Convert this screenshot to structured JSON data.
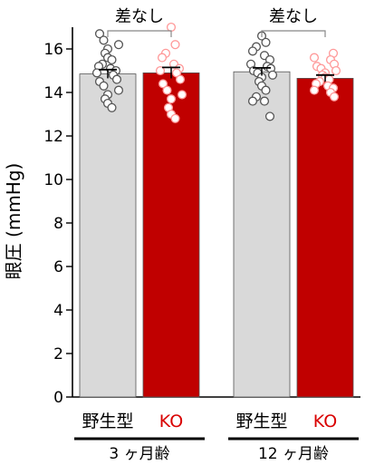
{
  "chart_data": {
    "type": "bar",
    "ylabel": "眼圧 (mmHg)",
    "ylim": [
      0,
      17
    ],
    "yticks": [
      0,
      2,
      4,
      6,
      8,
      10,
      12,
      14,
      16
    ],
    "groups": [
      {
        "label": "3 ヶ月齢",
        "significance": "差なし",
        "bars": [
          {
            "label": "野生型",
            "label_color": "#000000",
            "fill": "#d9d9d9",
            "mean": 14.85,
            "sem": 0.2,
            "point_color": "#555555",
            "points": [
              16.7,
              16.4,
              16.2,
              16.0,
              15.8,
              15.6,
              15.5,
              15.3,
              15.2,
              15.1,
              15.0,
              14.9,
              14.8,
              14.6,
              14.5,
              14.3,
              14.1,
              13.9,
              13.7,
              13.5,
              13.3
            ]
          },
          {
            "label": "KO",
            "label_color": "#d90000",
            "fill": "#c00000",
            "mean": 14.9,
            "sem": 0.25,
            "point_color": "#ff9999",
            "points": [
              17.0,
              16.2,
              15.8,
              15.6,
              15.3,
              15.1,
              15.0,
              14.9,
              14.6,
              14.4,
              14.1,
              13.9,
              13.7,
              13.3,
              13.0,
              12.8
            ]
          }
        ]
      },
      {
        "label": "12 ヶ月齢",
        "significance": "差なし",
        "bars": [
          {
            "label": "野生型",
            "label_color": "#000000",
            "fill": "#d9d9d9",
            "mean": 14.95,
            "sem": 0.18,
            "point_color": "#555555",
            "points": [
              16.6,
              16.3,
              16.1,
              15.9,
              15.7,
              15.5,
              15.3,
              15.2,
              15.1,
              15.0,
              14.9,
              14.8,
              14.7,
              14.5,
              14.3,
              14.1,
              13.8,
              13.6,
              13.6,
              12.9
            ]
          },
          {
            "label": "KO",
            "label_color": "#d90000",
            "fill": "#c00000",
            "mean": 14.65,
            "sem": 0.15,
            "point_color": "#ff9999",
            "points": [
              15.8,
              15.6,
              15.5,
              15.3,
              15.2,
              15.1,
              15.0,
              14.9,
              14.8,
              14.7,
              14.6,
              14.5,
              14.4,
              14.3,
              14.2,
              14.1,
              14.0,
              13.8
            ]
          }
        ]
      }
    ]
  }
}
